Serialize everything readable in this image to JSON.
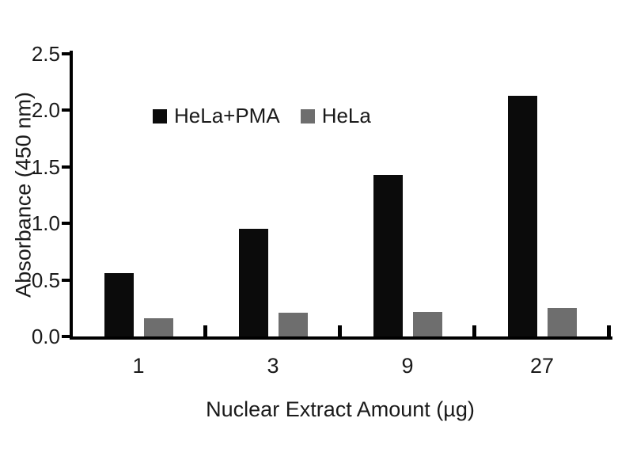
{
  "chart_data": {
    "type": "bar",
    "title": "",
    "categories": [
      "1",
      "3",
      "9",
      "27"
    ],
    "series": [
      {
        "name": "HeLa+PMA",
        "color": "#0b0b0b",
        "values": [
          0.56,
          0.95,
          1.43,
          2.13
        ]
      },
      {
        "name": "HeLa",
        "color": "#6e6e6e",
        "values": [
          0.16,
          0.21,
          0.22,
          0.25
        ]
      }
    ],
    "xlabel": "Nuclear Extract Amount (µg)",
    "ylabel": "Absorbance (450 nm)",
    "ylim": [
      0,
      2.5
    ],
    "yticks": [
      "0.0",
      "0.5",
      "1.0",
      "1.5",
      "2.0",
      "2.5"
    ],
    "grid": false,
    "legend_position": "inside-top-left",
    "colors": {
      "background": "#ffffff",
      "axis": "#000000",
      "text": "#1a1a1a"
    }
  }
}
